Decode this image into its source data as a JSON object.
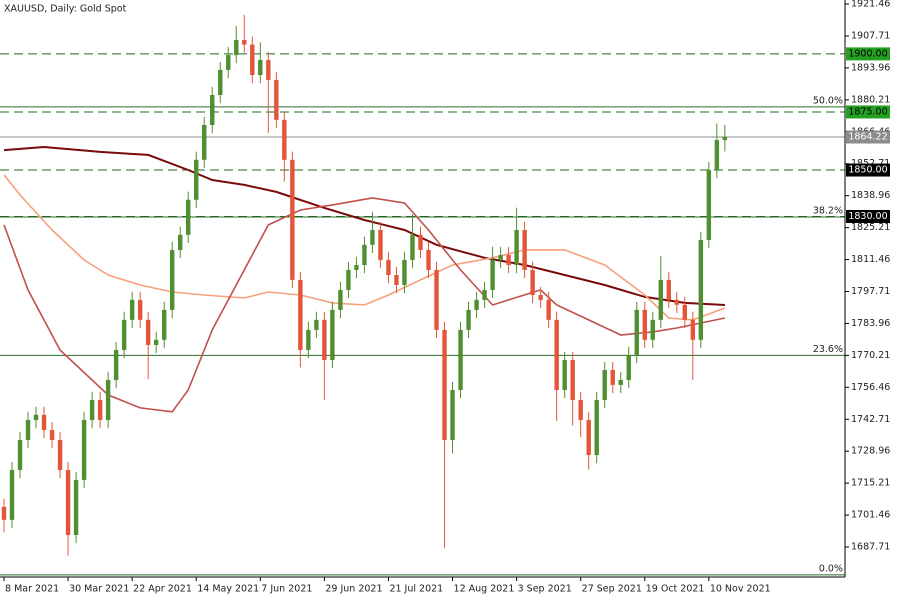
{
  "chart_data": {
    "type": "candlestick",
    "title": "XAUUSD, Daily:  Gold Spot",
    "up_color": "#4f8f2f",
    "down_color": "#e3563a",
    "x": [
      0,
      1,
      2,
      3,
      4,
      5,
      6,
      7,
      8,
      9,
      10,
      11,
      12,
      13,
      14,
      15,
      16,
      17,
      18,
      19,
      20,
      21,
      22,
      23,
      24,
      25,
      26,
      27,
      28,
      29,
      30,
      31,
      32,
      33,
      34,
      35,
      36,
      37,
      38,
      39,
      40,
      41,
      42,
      43,
      44,
      45,
      46,
      47,
      48,
      49,
      50,
      51,
      52,
      53,
      54,
      55,
      56,
      57,
      58,
      59,
      60,
      61,
      62,
      63,
      64,
      65,
      66,
      67,
      68,
      69,
      70,
      71,
      72,
      73,
      74,
      75,
      76,
      77,
      78,
      79,
      80,
      81,
      82,
      83,
      84,
      85,
      86,
      87,
      88,
      89,
      90
    ],
    "open": [
      1705.0,
      1699.4,
      1720.9,
      1733.8,
      1742.4,
      1744.6,
      1738.1,
      1733.8,
      1720.9,
      1692.9,
      1716.6,
      1742.4,
      1751.0,
      1742.4,
      1759.6,
      1772.5,
      1785.5,
      1794.1,
      1785.5,
      1774.7,
      1776.9,
      1789.8,
      1815.6,
      1822.1,
      1837.2,
      1854.4,
      1869.4,
      1882.3,
      1893.1,
      1899.5,
      1906.0,
      1904.0,
      1890.9,
      1897.4,
      1888.8,
      1871.6,
      1854.4,
      1802.7,
      1772.5,
      1781.2,
      1785.5,
      1768.2,
      1789.8,
      1798.4,
      1807.0,
      1809.1,
      1817.8,
      1824.2,
      1811.3,
      1804.8,
      1800.5,
      1811.3,
      1822.1,
      1815.6,
      1807.0,
      1781.2,
      1733.8,
      1755.3,
      1781.2,
      1789.8,
      1794.1,
      1798.4,
      1811.3,
      1813.4,
      1809.1,
      1824.2,
      1807.0,
      1796.2,
      1794.1,
      1785.5,
      1755.3,
      1768.2,
      1751.0,
      1742.4,
      1727.3,
      1751.0,
      1763.9,
      1757.5,
      1759.6,
      1770.4,
      1789.8,
      1776.9,
      1785.5,
      1802.7,
      1794.1,
      1792.0,
      1785.5,
      1776.9,
      1819.9,
      1850.0,
      1862.9
    ],
    "high": [
      1708.5,
      1724.4,
      1737.3,
      1745.9,
      1748.1,
      1748.1,
      1741.6,
      1737.3,
      1724.4,
      1720.1,
      1745.9,
      1754.5,
      1754.5,
      1763.1,
      1776.0,
      1789.0,
      1797.6,
      1797.6,
      1789.0,
      1780.4,
      1793.3,
      1819.1,
      1825.6,
      1840.7,
      1857.9,
      1872.9,
      1885.8,
      1896.6,
      1903.0,
      1912.0,
      1916.8,
      1907.5,
      1905.0,
      1900.9,
      1892.3,
      1875.1,
      1857.9,
      1806.2,
      1784.7,
      1789.0,
      1789.0,
      1793.3,
      1801.9,
      1810.5,
      1812.6,
      1821.3,
      1832.0,
      1827.7,
      1814.8,
      1808.3,
      1814.8,
      1831.0,
      1825.6,
      1819.1,
      1810.5,
      1784.7,
      1758.8,
      1784.7,
      1793.3,
      1797.6,
      1801.9,
      1817.0,
      1816.9,
      1816.9,
      1833.8,
      1827.7,
      1810.5,
      1799.7,
      1797.6,
      1789.0,
      1771.7,
      1771.7,
      1754.5,
      1745.9,
      1754.5,
      1767.4,
      1767.4,
      1763.1,
      1773.9,
      1793.3,
      1793.3,
      1789.0,
      1813.0,
      1806.2,
      1797.6,
      1795.5,
      1789.0,
      1823.4,
      1853.5,
      1870.0,
      1869.5
    ],
    "low": [
      1694.0,
      1695.9,
      1717.4,
      1730.3,
      1738.9,
      1734.6,
      1730.3,
      1717.4,
      1684.0,
      1689.4,
      1713.1,
      1738.9,
      1738.9,
      1738.9,
      1756.1,
      1769.0,
      1782.0,
      1782.0,
      1760.0,
      1771.2,
      1773.4,
      1786.3,
      1812.1,
      1818.6,
      1833.7,
      1850.9,
      1865.9,
      1878.8,
      1889.6,
      1896.0,
      1900.5,
      1887.4,
      1887.4,
      1866.0,
      1868.1,
      1845.0,
      1799.2,
      1765.0,
      1769.0,
      1777.7,
      1751.0,
      1764.7,
      1786.3,
      1794.9,
      1803.5,
      1805.6,
      1814.3,
      1807.8,
      1801.3,
      1797.0,
      1797.0,
      1807.8,
      1812.1,
      1803.5,
      1777.7,
      1687.3,
      1728.0,
      1751.8,
      1777.7,
      1786.3,
      1790.6,
      1794.9,
      1807.8,
      1805.6,
      1805.6,
      1803.5,
      1792.7,
      1790.6,
      1782.0,
      1742.0,
      1751.8,
      1740.0,
      1735.0,
      1721.0,
      1723.8,
      1747.5,
      1754.0,
      1754.0,
      1756.1,
      1766.9,
      1773.4,
      1773.4,
      1782.0,
      1790.6,
      1788.5,
      1782.0,
      1759.6,
      1773.4,
      1816.4,
      1846.5,
      1858.0
    ],
    "close": [
      1699.4,
      1720.9,
      1733.8,
      1742.4,
      1744.6,
      1738.1,
      1733.8,
      1720.9,
      1692.9,
      1716.6,
      1742.4,
      1751.0,
      1742.4,
      1759.6,
      1772.5,
      1785.5,
      1794.1,
      1785.5,
      1774.7,
      1776.9,
      1789.8,
      1815.6,
      1822.1,
      1837.2,
      1854.4,
      1869.4,
      1882.3,
      1893.1,
      1899.5,
      1906.0,
      1904.0,
      1890.9,
      1897.4,
      1888.8,
      1871.6,
      1854.4,
      1802.7,
      1772.5,
      1781.2,
      1785.5,
      1768.2,
      1789.8,
      1798.4,
      1807.0,
      1809.1,
      1817.8,
      1824.2,
      1811.3,
      1804.8,
      1800.5,
      1811.3,
      1822.1,
      1815.6,
      1807.0,
      1781.2,
      1733.8,
      1755.3,
      1781.2,
      1789.8,
      1794.1,
      1798.4,
      1811.3,
      1813.4,
      1809.1,
      1824.2,
      1807.0,
      1796.2,
      1794.1,
      1785.5,
      1755.3,
      1768.2,
      1751.0,
      1742.4,
      1727.3,
      1751.0,
      1763.9,
      1757.5,
      1759.6,
      1770.4,
      1789.8,
      1776.9,
      1785.5,
      1802.7,
      1794.1,
      1792.0,
      1785.5,
      1776.9,
      1819.9,
      1850.0,
      1862.9,
      1864.2
    ],
    "moving_averages": [
      {
        "color": "#7a0a0a",
        "x": [
          0,
          5,
          12,
          18,
          23,
          26,
          30,
          34,
          40,
          45,
          50,
          54,
          60,
          65,
          70,
          75,
          80,
          85,
          90
        ],
        "values": [
          1858.6,
          1859.9,
          1857.8,
          1856.5,
          1850.0,
          1845.7,
          1843.6,
          1840.6,
          1833.7,
          1828.5,
          1824.2,
          1817.8,
          1812.2,
          1809.1,
          1804.8,
          1800.5,
          1795.4,
          1792.8,
          1791.9
        ]
      },
      {
        "color": "#f6a07c",
        "x": [
          0,
          2,
          6,
          10,
          13,
          17,
          21,
          25,
          30,
          33,
          37,
          41,
          45,
          48,
          52,
          56,
          61,
          65,
          70,
          75,
          80,
          83,
          86,
          90
        ],
        "values": [
          1847.9,
          1839.3,
          1824.2,
          1811.3,
          1804.8,
          1800.5,
          1797.5,
          1796.2,
          1794.9,
          1797.5,
          1796.2,
          1792.8,
          1791.9,
          1796.2,
          1802.7,
          1809.1,
          1812.2,
          1815.6,
          1815.6,
          1809.1,
          1796.2,
          1786.3,
          1785.5,
          1790.6
        ]
      },
      {
        "color": "#c0504d",
        "x": [
          0,
          3,
          7,
          11,
          13,
          17,
          21,
          23,
          26,
          30,
          33,
          37,
          41,
          46,
          50,
          53,
          57,
          61,
          63,
          67,
          69,
          73,
          77,
          81,
          84,
          90
        ],
        "values": [
          1826.4,
          1798.4,
          1772.5,
          1759.6,
          1753.2,
          1747.6,
          1745.9,
          1755.3,
          1781.2,
          1807.0,
          1826.4,
          1832.8,
          1835.0,
          1838.0,
          1835.8,
          1824.2,
          1807.0,
          1791.9,
          1794.1,
          1798.4,
          1791.9,
          1785.5,
          1779.0,
          1780.3,
          1782.0,
          1786.3
        ]
      }
    ],
    "levels": [
      {
        "value": 1900,
        "label": "1900.00",
        "color": "#1e6b1e",
        "label_bg": "#22a022",
        "label_color": "#000000"
      },
      {
        "value": 1875,
        "label": "1875.00",
        "color": "#1e6b1e",
        "label_bg": "#22a022",
        "label_color": "#000000"
      },
      {
        "value": 1850,
        "label": "1850.00",
        "color": "#1e6b1e",
        "label_bg": "#000000",
        "label_color": "#ffffff"
      },
      {
        "value": 1830,
        "label": "1830.00",
        "color": "#1e6b1e",
        "label_bg": "#000000",
        "label_color": "#ffffff"
      }
    ],
    "fib_color": "#2e6b2e",
    "fib_levels": [
      {
        "value": 1877.2,
        "label": "50.0%"
      },
      {
        "value": 1829.8,
        "label": "38.2%"
      },
      {
        "value": 1770.2,
        "label": "23.6%"
      },
      {
        "value": 1675.7,
        "label": "0.0%"
      }
    ],
    "current_price": 1864.22,
    "current_color": "#8c8c8c",
    "xlim": [
      -0.5,
      105
    ],
    "ylim": [
      1674.8,
      1923.2
    ],
    "xticks": [
      {
        "value": 0,
        "label": "8 Mar 2021"
      },
      {
        "value": 8,
        "label": "30 Mar 2021"
      },
      {
        "value": 16,
        "label": "22 Apr 2021"
      },
      {
        "value": 24,
        "label": "14 May 2021"
      },
      {
        "value": 32,
        "label": "7 Jun 2021"
      },
      {
        "value": 40,
        "label": "29 Jun 2021"
      },
      {
        "value": 48,
        "label": "21 Jul 2021"
      },
      {
        "value": 56,
        "label": "12 Aug 2021"
      },
      {
        "value": 64,
        "label": "3 Sep 2021"
      },
      {
        "value": 72,
        "label": "27 Sep 2021"
      },
      {
        "value": 80,
        "label": "19 Oct 2021"
      },
      {
        "value": 88,
        "label": "10 Nov 2021"
      }
    ],
    "yticks": [
      1921.46,
      1907.71,
      1893.96,
      1880.21,
      1866.46,
      1852.71,
      1838.96,
      1825.21,
      1811.46,
      1797.71,
      1783.96,
      1770.21,
      1756.46,
      1742.71,
      1728.96,
      1715.21,
      1701.46,
      1687.71
    ]
  }
}
